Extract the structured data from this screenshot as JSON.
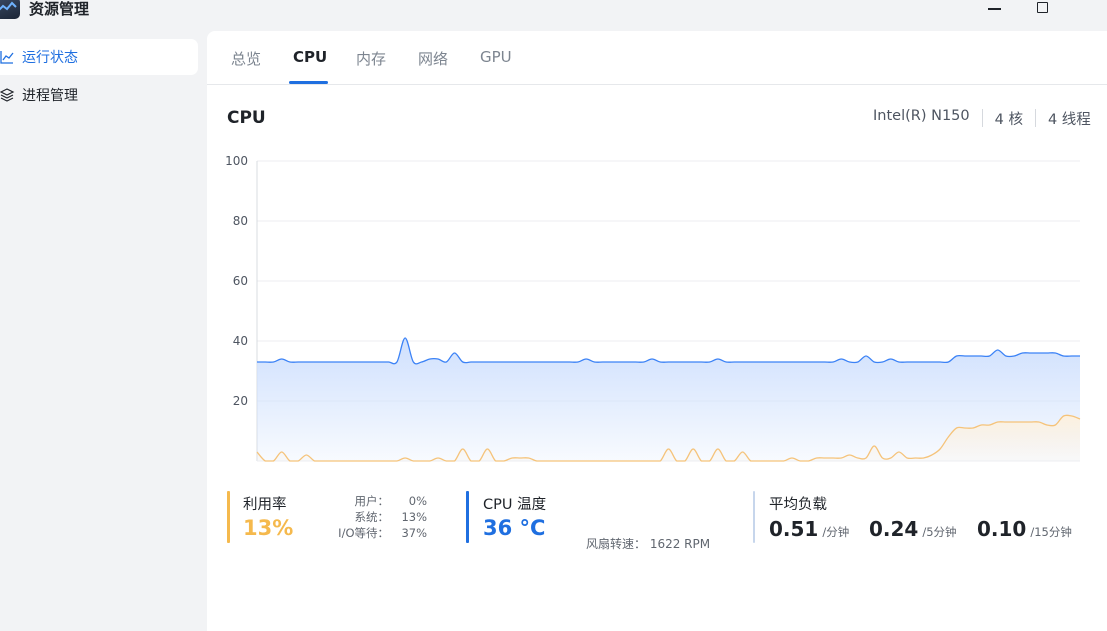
{
  "window": {
    "title": "资源管理",
    "icons": {
      "app": "app-logo-icon",
      "minimize": "minimize-icon",
      "maximize": "maximize-icon"
    }
  },
  "sidebar": {
    "items": [
      {
        "label": "运行状态",
        "icon": "line-chart-icon",
        "active": true
      },
      {
        "label": "进程管理",
        "icon": "layers-icon",
        "active": false
      }
    ]
  },
  "tabs": [
    {
      "label": "总览",
      "active": false
    },
    {
      "label": "CPU",
      "active": true
    },
    {
      "label": "内存",
      "active": false
    },
    {
      "label": "网络",
      "active": false
    },
    {
      "label": "GPU",
      "active": false
    }
  ],
  "cpu": {
    "title": "CPU",
    "model": "Intel(R) N150",
    "cores": "4 核",
    "threads": "4 线程"
  },
  "chart_data": {
    "type": "area",
    "title": "",
    "xlabel": "",
    "ylabel": "",
    "ylim": [
      0,
      100
    ],
    "yticks": [
      20,
      40,
      60,
      80,
      100
    ],
    "grid": true,
    "series": [
      {
        "color": "#3b82f6",
        "fill": "#cfe0fd",
        "values": [
          33,
          33,
          33,
          34,
          33,
          33,
          33,
          33,
          33,
          33,
          33,
          33,
          33,
          33,
          33,
          33,
          33,
          33,
          41,
          33,
          33,
          34,
          34,
          33,
          36,
          33,
          33,
          33,
          33,
          33,
          33,
          33,
          33,
          33,
          33,
          33,
          33,
          33,
          33,
          33,
          34,
          33,
          33,
          33,
          33,
          33,
          33,
          33,
          34,
          33,
          33,
          33,
          33,
          33,
          33,
          33,
          34,
          33,
          33,
          33,
          33,
          33,
          33,
          33,
          33,
          33,
          33,
          33,
          33,
          33,
          33,
          34,
          33,
          33,
          35,
          33,
          33,
          34,
          33,
          33,
          33,
          33,
          33,
          33,
          33,
          35,
          35,
          35,
          35,
          35,
          37,
          35,
          35,
          36,
          36,
          36,
          36,
          36,
          35,
          35,
          35
        ]
      },
      {
        "color": "#f5c37a",
        "fill": "#fdf1df",
        "values": [
          3,
          0,
          0,
          3,
          0,
          0,
          2,
          0,
          0,
          0,
          0,
          0,
          0,
          0,
          0,
          0,
          0,
          0,
          1,
          0,
          0,
          0,
          1,
          0,
          0,
          4,
          0,
          0,
          4,
          0,
          0,
          1,
          1,
          1,
          0,
          0,
          0,
          0,
          0,
          0,
          0,
          0,
          0,
          0,
          0,
          0,
          0,
          0,
          0,
          0,
          4,
          0,
          0,
          4,
          0,
          0,
          4,
          0,
          0,
          3,
          0,
          0,
          0,
          0,
          0,
          1,
          0,
          0,
          1,
          1,
          1,
          1,
          2,
          1,
          1,
          5,
          1,
          1,
          3,
          1,
          1,
          1,
          2,
          4,
          8,
          11,
          11,
          11,
          12,
          12,
          13,
          13,
          13,
          13,
          13,
          13,
          12,
          12,
          15,
          15,
          14
        ]
      }
    ]
  },
  "stats": {
    "usage": {
      "label": "利用率",
      "value": "13%",
      "color": "#f5b94d",
      "breakdown": [
        {
          "key": "用户：",
          "value": "0%"
        },
        {
          "key": "系统：",
          "value": "13%"
        },
        {
          "key": "I/O等待：",
          "value": "37%"
        }
      ]
    },
    "temperature": {
      "label": "CPU 温度",
      "value": "36 °C",
      "color": "#1f6fe0",
      "fan": "风扇转速：   1622 RPM"
    },
    "load": {
      "label": "平均负载",
      "color": "#c7d6ec",
      "items": [
        {
          "value": "0.51",
          "unit": "/分钟"
        },
        {
          "value": "0.24",
          "unit": "/5分钟"
        },
        {
          "value": "0.10",
          "unit": "/15分钟"
        }
      ]
    }
  }
}
